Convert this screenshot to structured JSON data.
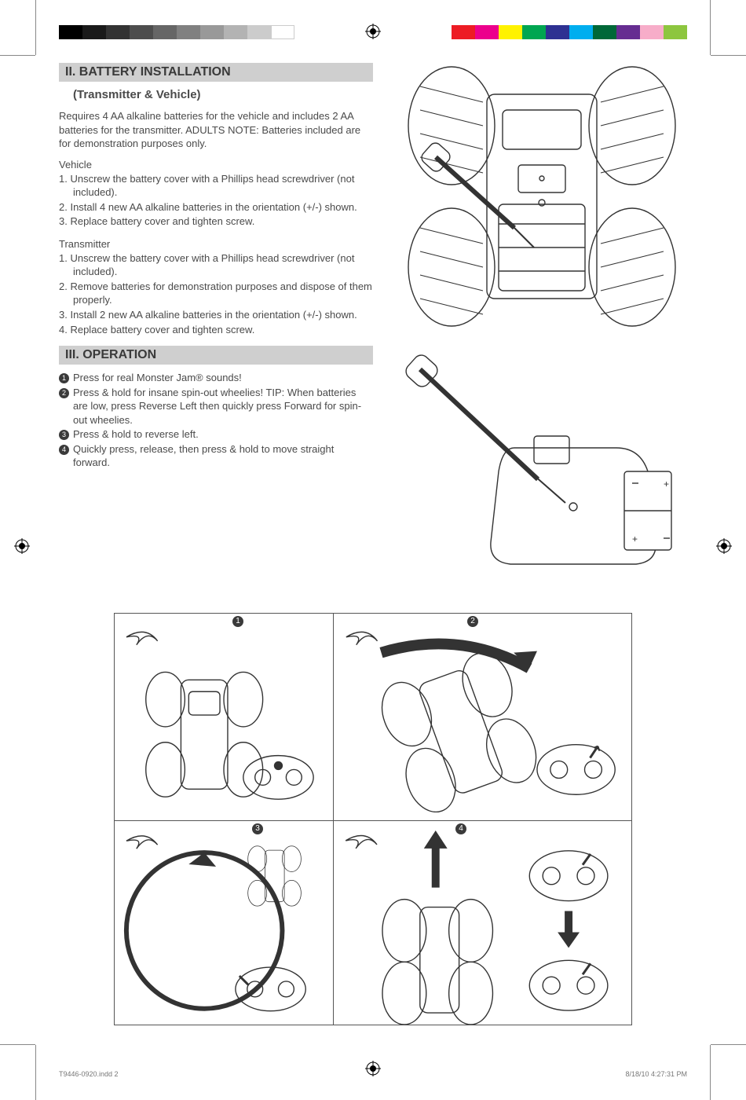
{
  "colorbars": {
    "left": [
      "#000000",
      "#1a1a1a",
      "#333333",
      "#4d4d4d",
      "#666666",
      "#808080",
      "#999999",
      "#b3b3b3",
      "#cccccc",
      "#ffffff"
    ],
    "right": [
      "#ed1c24",
      "#ec008c",
      "#fff200",
      "#00a651",
      "#2e3192",
      "#00aeef",
      "#006838",
      "#662d91",
      "#f7adc9",
      "#8dc63f"
    ]
  },
  "sections": {
    "battery": {
      "header": "II. BATTERY INSTALLATION",
      "subhead": "(Transmitter & Vehicle)",
      "intro": "Requires 4 AA alkaline batteries for the vehicle and includes 2 AA batteries for the transmitter. ADULTS NOTE: Batteries included are for demonstration purposes only.",
      "vehicle_label": "Vehicle",
      "vehicle_steps": [
        "1. Unscrew the battery cover with a Phillips head screwdriver (not included).",
        "2. Install 4 new AA alkaline batteries in the orientation (+/-) shown.",
        "3. Replace battery cover and tighten screw."
      ],
      "transmitter_label": "Transmitter",
      "transmitter_steps": [
        "1. Unscrew the battery cover with a Phillips head screwdriver (not included).",
        "2. Remove batteries for demonstration purposes and dispose of them properly.",
        "3. Install 2 new AA alkaline batteries in the orientation (+/-) shown.",
        "4. Replace battery cover and tighten screw."
      ]
    },
    "operation": {
      "header": "III. OPERATION",
      "items": [
        "Press for real Monster Jam® sounds!",
        "Press & hold for insane spin-out wheelies! TIP: When batteries are low, press Reverse Left then quickly press Forward for spin-out wheelies.",
        "Press & hold to reverse left.",
        "Quickly press, release, then press & hold to move straight forward."
      ]
    }
  },
  "diagram_labels": {
    "vehicle": "Vehicle underside – battery compartment with screwdriver",
    "transmitter": "Transmitter – battery compartment with screwdriver",
    "panel1": "Sound button press",
    "panel2": "Spin-out wheelie",
    "panel3": "Reverse left circle",
    "panel4": "Forward motion"
  },
  "quad_numbers": [
    "1",
    "2",
    "3",
    "4"
  ],
  "footer": {
    "left": "T9446-0920.indd   2",
    "right": "8/18/10   4:27:31 PM"
  },
  "colors": {
    "header_bg": "#cfcfcf",
    "text": "#4a4a4a",
    "line": "#333333"
  }
}
